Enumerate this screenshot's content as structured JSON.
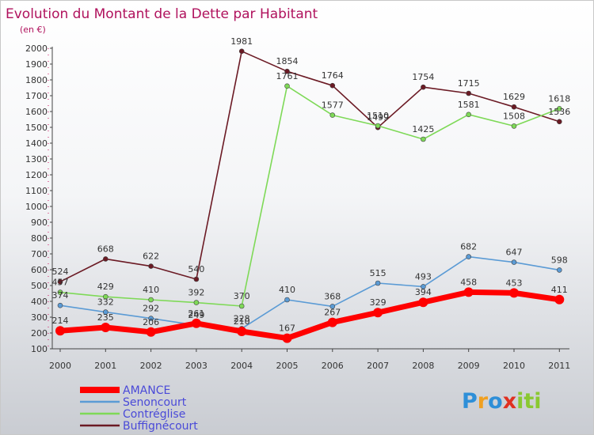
{
  "chart_data": {
    "type": "line",
    "title": "Evolution du Montant de la Dette par Habitant",
    "subtitle": "(en €)",
    "x": [
      "2000",
      "2001",
      "2002",
      "2003",
      "2004",
      "2005",
      "2006",
      "2007",
      "2008",
      "2009",
      "2010",
      "2011"
    ],
    "ylim": [
      100,
      2000
    ],
    "yticks": [
      100,
      200,
      300,
      400,
      500,
      600,
      700,
      800,
      900,
      1000,
      1100,
      1200,
      1300,
      1400,
      1500,
      1600,
      1700,
      1800,
      1900,
      2000
    ],
    "grid": false,
    "legend_position": "bottom-left",
    "series": [
      {
        "name": "Buffignécourt",
        "color": "#6b1a24",
        "values": [
          524,
          668,
          622,
          540,
          1981,
          1854,
          1764,
          1499,
          1754,
          1715,
          1629,
          1536
        ]
      },
      {
        "name": "Contréglise",
        "color": "#7ed957",
        "values": [
          457,
          429,
          410,
          392,
          370,
          1761,
          1577,
          1510,
          1425,
          1581,
          1508,
          1618
        ]
      },
      {
        "name": "Senoncourt",
        "color": "#5b9bd5",
        "values": [
          374,
          332,
          292,
          249,
          228,
          410,
          368,
          515,
          493,
          682,
          647,
          598
        ]
      },
      {
        "name": "AMANCE",
        "color": "#ff0000",
        "values": [
          214,
          235,
          206,
          261,
          210,
          167,
          267,
          329,
          394,
          458,
          453,
          411
        ]
      }
    ]
  },
  "legend_order": [
    "AMANCE",
    "Senoncourt",
    "Contréglise",
    "Buffignécourt"
  ],
  "brand": {
    "letters": [
      "P",
      "r",
      "o",
      "x",
      "i",
      "t",
      "i"
    ],
    "colors": [
      "#2e8fd8",
      "#f0a020",
      "#2e8fd8",
      "#e03020",
      "#8ac832",
      "#8ac832",
      "#8ac832"
    ]
  }
}
